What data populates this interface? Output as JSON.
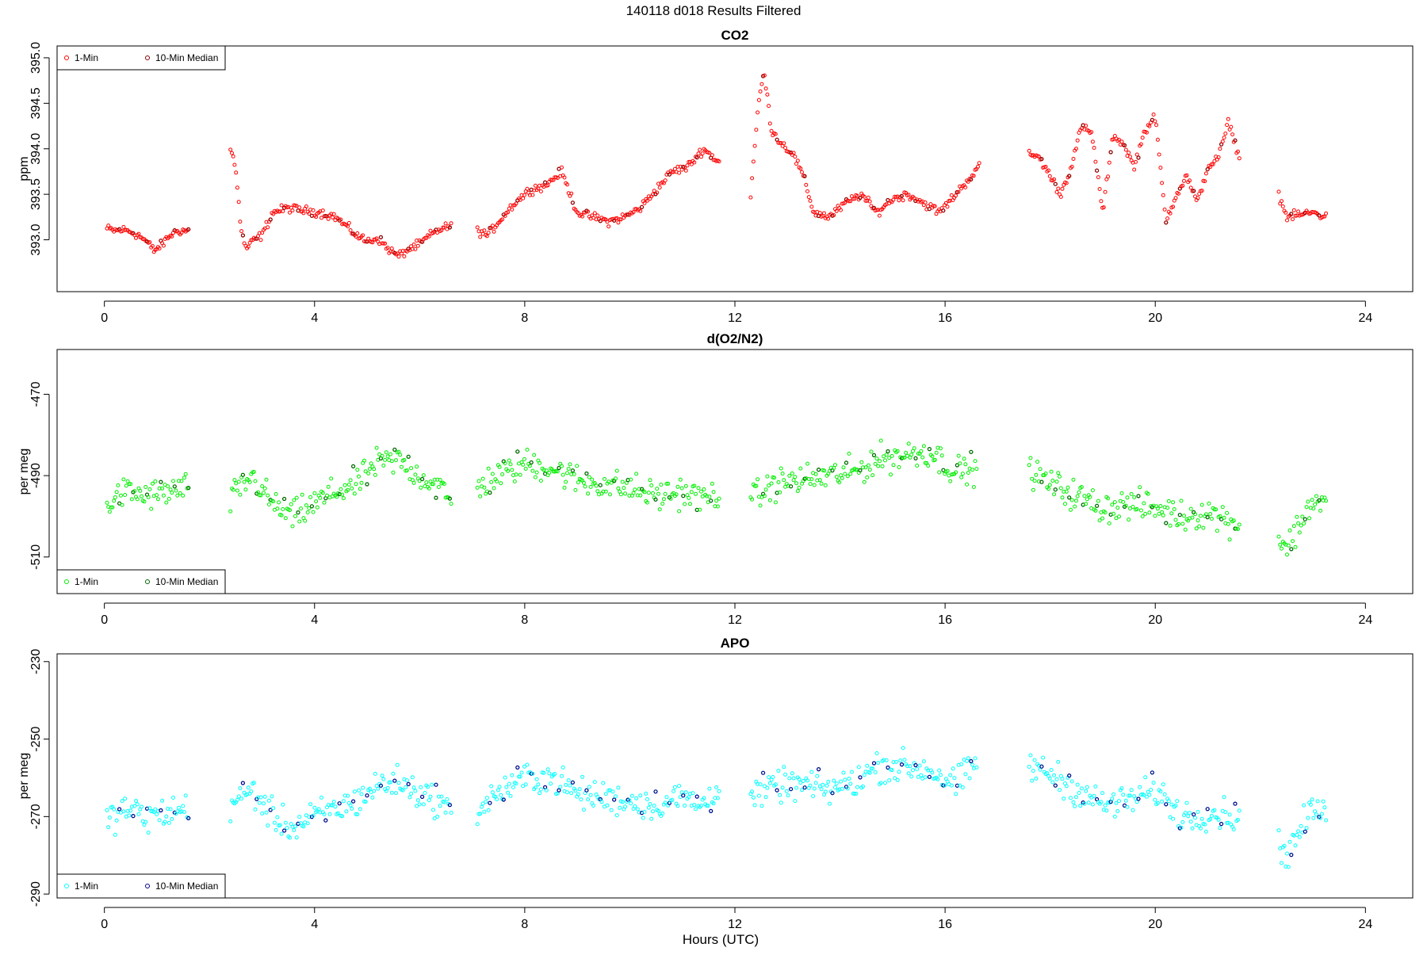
{
  "figure": {
    "title": "140118   d018   Results Filtered",
    "xlabel": "Hours (UTC)"
  },
  "colors": {
    "co2_1min": "#ff0000",
    "co2_median": "#8b0000",
    "o2_1min": "#00ee00",
    "o2_median": "#006400",
    "apo_1min": "#00ffff",
    "apo_median": "#00008b"
  },
  "chart_data": [
    {
      "type": "scatter",
      "title": "CO2",
      "xlabel": "",
      "ylabel": "ppm",
      "xlim": [
        -0.9,
        24.9
      ],
      "ylim": [
        392.43,
        395.13
      ],
      "xticks": [
        0,
        4,
        8,
        12,
        16,
        20,
        24
      ],
      "yticks": [
        393.0,
        393.5,
        394.0,
        394.5,
        395.0
      ],
      "ytick_labels": [
        "393.0",
        "393.5",
        "394.0",
        "394.5",
        "395.0"
      ],
      "grid": false,
      "legend_position": "top-left",
      "legend": [
        "1-Min",
        "10-Min Median"
      ],
      "segments": [
        {
          "x": [
            0.05,
            0.2,
            0.35,
            0.5,
            0.65,
            0.8,
            0.95,
            1.1,
            1.25,
            1.4,
            1.6
          ],
          "y": [
            393.12,
            393.1,
            393.11,
            393.09,
            393.05,
            392.98,
            392.88,
            392.95,
            393.05,
            393.1,
            393.1
          ]
        },
        {
          "x": [
            2.4,
            2.5,
            2.6,
            2.7,
            2.85,
            3.0,
            3.2,
            3.5,
            3.8,
            4.1,
            4.4,
            4.6,
            4.8,
            5.0,
            5.2,
            5.4,
            5.6,
            5.8,
            6.0,
            6.2,
            6.4,
            6.6
          ],
          "y": [
            394.0,
            393.8,
            393.1,
            392.9,
            393.0,
            393.05,
            393.3,
            393.35,
            393.32,
            393.3,
            393.25,
            393.15,
            393.05,
            392.98,
            393.02,
            392.9,
            392.82,
            392.9,
            392.95,
            393.05,
            393.12,
            393.15
          ]
        },
        {
          "x": [
            7.1,
            7.3,
            7.5,
            7.8,
            8.1,
            8.4,
            8.7,
            9.0,
            9.3,
            9.6,
            9.9,
            10.2,
            10.5,
            10.8,
            11.1,
            11.4,
            11.7
          ],
          "y": [
            393.1,
            393.05,
            393.2,
            393.4,
            393.55,
            393.6,
            393.75,
            393.3,
            393.25,
            393.2,
            393.25,
            393.35,
            393.55,
            393.75,
            393.8,
            394.0,
            393.85
          ]
        },
        {
          "x": [
            12.3,
            12.45,
            12.55,
            12.7,
            12.9,
            13.1,
            13.3,
            13.5,
            13.8,
            14.1,
            14.4,
            14.7,
            15.0,
            15.3,
            15.6,
            15.9,
            16.2,
            16.5,
            16.65
          ],
          "y": [
            393.5,
            394.5,
            394.85,
            394.2,
            394.05,
            393.95,
            393.7,
            393.3,
            393.25,
            393.4,
            393.5,
            393.3,
            393.45,
            393.5,
            393.4,
            393.3,
            393.5,
            393.7,
            393.8
          ]
        },
        {
          "x": [
            17.6,
            17.8,
            18.0,
            18.2,
            18.4,
            18.6,
            18.8,
            19.0,
            19.2,
            19.4,
            19.6,
            19.8,
            20.0,
            20.2,
            20.4,
            20.6,
            20.8,
            21.0,
            21.2,
            21.4,
            21.6
          ],
          "y": [
            393.95,
            393.9,
            393.7,
            393.5,
            393.8,
            394.25,
            394.15,
            393.3,
            394.15,
            394.05,
            393.8,
            394.2,
            394.35,
            393.2,
            393.5,
            393.7,
            393.4,
            393.8,
            393.9,
            394.3,
            393.9
          ]
        },
        {
          "x": [
            22.35,
            22.5,
            23.0,
            23.25
          ],
          "y": [
            393.5,
            393.25,
            393.3,
            393.25
          ]
        }
      ],
      "spread": 0.07,
      "medians_every": 10
    },
    {
      "type": "scatter",
      "title": "d(O2/N2)",
      "xlabel": "",
      "ylabel": "per meg",
      "xlim": [
        -0.9,
        24.9
      ],
      "ylim": [
        -519,
        -459
      ],
      "xticks": [
        0,
        4,
        8,
        12,
        16,
        20,
        24
      ],
      "yticks": [
        -470,
        -490,
        -510
      ],
      "ytick_labels": [
        "-470",
        "-490",
        "-510"
      ],
      "grid": false,
      "legend_position": "bottom-left",
      "legend": [
        "1-Min",
        "10-Min Median"
      ],
      "segments": [
        {
          "x": [
            0.05,
            0.4,
            0.8,
            1.2,
            1.6
          ],
          "y": [
            -497,
            -494,
            -495,
            -494,
            -493
          ]
        },
        {
          "x": [
            2.4,
            2.8,
            3.2,
            3.6,
            4.0,
            4.4,
            4.8,
            5.2,
            5.6,
            6.0,
            6.4,
            6.6
          ],
          "y": [
            -496,
            -490,
            -497,
            -500,
            -497,
            -494,
            -492,
            -487,
            -486,
            -490,
            -493,
            -497
          ]
        },
        {
          "x": [
            7.1,
            7.5,
            8.0,
            8.5,
            9.0,
            9.5,
            10.0,
            10.5,
            11.0,
            11.4,
            11.7
          ],
          "y": [
            -493,
            -490,
            -487,
            -488,
            -491,
            -492,
            -493,
            -495,
            -494,
            -496,
            -494
          ]
        },
        {
          "x": [
            12.3,
            12.8,
            13.3,
            13.8,
            14.3,
            14.7,
            15.2,
            15.7,
            16.2,
            16.6
          ],
          "y": [
            -496,
            -492,
            -491,
            -490,
            -489,
            -486,
            -485,
            -484,
            -489,
            -488
          ]
        },
        {
          "x": [
            17.6,
            18.0,
            18.5,
            19.0,
            19.5,
            20.0,
            20.5,
            21.0,
            21.6
          ],
          "y": [
            -489,
            -492,
            -495,
            -498,
            -497,
            -498,
            -500,
            -499,
            -502
          ]
        },
        {
          "x": [
            22.35,
            22.5,
            23.0,
            23.25
          ],
          "y": [
            -505,
            -508,
            -496,
            -497
          ]
        }
      ],
      "spread": 5.5,
      "medians_every": 10
    },
    {
      "type": "scatter",
      "title": "APO",
      "xlabel": "Hours (UTC)",
      "ylabel": "per meg",
      "xlim": [
        -0.9,
        24.9
      ],
      "ylim": [
        -291,
        -228
      ],
      "xticks": [
        0,
        4,
        8,
        12,
        16,
        20,
        24
      ],
      "yticks": [
        -230,
        -250,
        -270,
        -290
      ],
      "ytick_labels": [
        "-230",
        "-250",
        "-270",
        "-290"
      ],
      "grid": false,
      "legend_position": "bottom-left",
      "legend": [
        "1-Min",
        "10-Min Median"
      ],
      "segments": [
        {
          "x": [
            0.05,
            0.4,
            0.8,
            1.2,
            1.6
          ],
          "y": [
            -271,
            -268,
            -270,
            -269,
            -268
          ]
        },
        {
          "x": [
            2.4,
            2.8,
            3.2,
            3.6,
            4.0,
            4.4,
            4.8,
            5.2,
            5.6,
            6.0,
            6.4,
            6.6
          ],
          "y": [
            -267,
            -263,
            -270,
            -273,
            -270,
            -268,
            -266,
            -262,
            -261,
            -264,
            -266,
            -270
          ]
        },
        {
          "x": [
            7.1,
            7.5,
            8.0,
            8.5,
            9.0,
            9.5,
            10.0,
            10.5,
            11.0,
            11.4,
            11.7
          ],
          "y": [
            -268,
            -264,
            -260,
            -260,
            -264,
            -265,
            -266,
            -267,
            -265,
            -267,
            -262
          ]
        },
        {
          "x": [
            12.3,
            12.8,
            13.3,
            13.8,
            14.3,
            14.7,
            15.2,
            15.7,
            16.2,
            16.6
          ],
          "y": [
            -265,
            -262,
            -262,
            -263,
            -261,
            -257,
            -257,
            -258,
            -262,
            -256
          ]
        },
        {
          "x": [
            17.6,
            18.0,
            18.5,
            19.0,
            19.5,
            20.0,
            20.5,
            21.0,
            21.6
          ],
          "y": [
            -257,
            -259,
            -263,
            -267,
            -266,
            -263,
            -270,
            -269,
            -270
          ]
        },
        {
          "x": [
            22.35,
            22.5,
            23.0,
            23.25
          ],
          "y": [
            -277,
            -280,
            -268,
            -270
          ]
        }
      ],
      "spread": 6,
      "medians_every": 10
    }
  ]
}
